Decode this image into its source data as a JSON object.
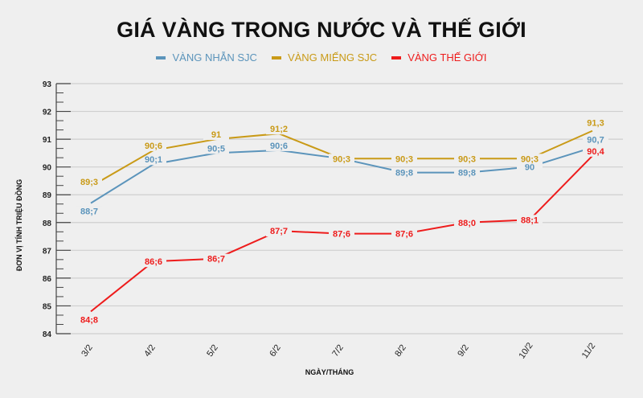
{
  "title": "GIÁ VÀNG TRONG NƯỚC VÀ THẾ GIỚI",
  "legend": [
    {
      "label": "VÀNG NHẪN SJC",
      "color": "#5b94bb"
    },
    {
      "label": "VÀNG MIẾNG SJC",
      "color": "#c99a17"
    },
    {
      "label": "VÀNG THẾ GIỚI",
      "color": "#ee1c1c"
    }
  ],
  "axes": {
    "ylabel": "ĐƠN VỊ TÍNH TRIỆU ĐỒNG",
    "xlabel": "NGÀY/THÁNG"
  },
  "chart_data": {
    "type": "line",
    "title": "GIÁ VÀNG TRONG NƯỚC VÀ THẾ GIỚI",
    "xlabel": "NGÀY/THÁNG",
    "ylabel": "ĐƠN VỊ TÍNH TRIỆU ĐỒNG",
    "ylim": [
      84,
      93
    ],
    "yticks": [
      84,
      85,
      86,
      87,
      88,
      89,
      90,
      91,
      92,
      93
    ],
    "grid": true,
    "legend_position": "top",
    "categories": [
      "3/2",
      "4/2",
      "5/2",
      "6/2",
      "7/2",
      "8/2",
      "9/2",
      "10/2",
      "11/2"
    ],
    "series": [
      {
        "name": "VÀNG NHẪN SJC",
        "color": "#5b94bb",
        "values": [
          88.7,
          90.1,
          90.5,
          90.6,
          90.3,
          89.8,
          89.8,
          90.0,
          90.7
        ],
        "labels": [
          "88;7",
          "90;1",
          "90;5",
          "90;6",
          "",
          "89;8",
          "89;8",
          "90",
          "90,7"
        ]
      },
      {
        "name": "VÀNG MIẾNG SJC",
        "color": "#c99a17",
        "values": [
          89.3,
          90.6,
          91.0,
          91.2,
          90.3,
          90.3,
          90.3,
          90.3,
          91.3
        ],
        "labels": [
          "89;3",
          "90;6",
          "91",
          "91;2",
          "90;3",
          "90;3",
          "90;3",
          "90;3",
          "91,3"
        ]
      },
      {
        "name": "VÀNG THẾ GIỚI",
        "color": "#ee1c1c",
        "values": [
          84.8,
          86.6,
          86.7,
          87.7,
          87.6,
          87.6,
          88.0,
          88.1,
          90.4
        ],
        "labels": [
          "84;8",
          "86;6",
          "86;7",
          "87;7",
          "87;6",
          "87;6",
          "88;0",
          "88;1",
          "90,4"
        ]
      }
    ]
  }
}
